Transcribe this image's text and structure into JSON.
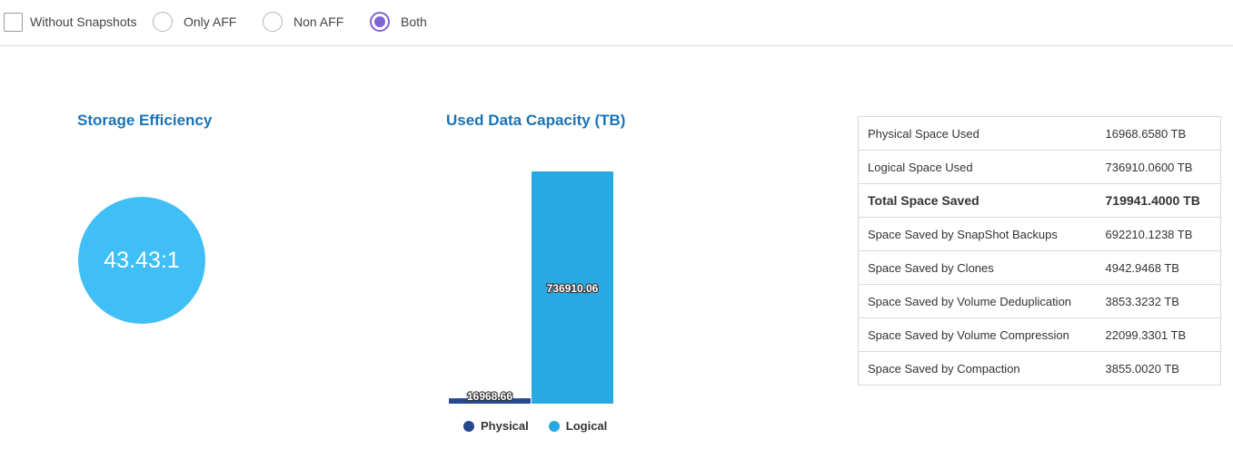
{
  "filters": {
    "without_snapshots": {
      "label": "Without Snapshots",
      "checked": false
    },
    "radios": [
      {
        "label": "Only AFF",
        "checked": false
      },
      {
        "label": "Non AFF",
        "checked": false
      },
      {
        "label": "Both",
        "checked": true
      }
    ]
  },
  "storage_efficiency": {
    "title": "Storage Efficiency",
    "value": "43.43:1"
  },
  "chart_data": {
    "type": "bar",
    "title": "Used Data Capacity (TB)",
    "categories": [
      "Physical",
      "Logical"
    ],
    "values": [
      16968.66,
      736910.06
    ],
    "value_labels": [
      "16968.66",
      "736910.06"
    ],
    "colors": [
      "#24498f",
      "#29a9e1"
    ],
    "legend": [
      {
        "name": "Physical",
        "color": "#24498f"
      },
      {
        "name": "Logical",
        "color": "#29a9e1"
      }
    ],
    "legend_position": "bottom",
    "grid": false,
    "ylim": [
      0,
      736910.06
    ]
  },
  "stats": [
    {
      "label": "Physical Space Used",
      "value": "16968.6580 TB",
      "bold": false
    },
    {
      "label": "Logical Space Used",
      "value": "736910.0600 TB",
      "bold": false
    },
    {
      "label": "Total Space Saved",
      "value": "719941.4000 TB",
      "bold": true
    },
    {
      "label": "Space Saved by SnapShot Backups",
      "value": "692210.1238 TB",
      "bold": false
    },
    {
      "label": "Space Saved by Clones",
      "value": "4942.9468 TB",
      "bold": false
    },
    {
      "label": "Space Saved by Volume Deduplication",
      "value": "3853.3232 TB",
      "bold": false
    },
    {
      "label": "Space Saved by Volume Compression",
      "value": "22099.3301 TB",
      "bold": false
    },
    {
      "label": "Space Saved by Compaction",
      "value": "3855.0020 TB",
      "bold": false
    }
  ]
}
